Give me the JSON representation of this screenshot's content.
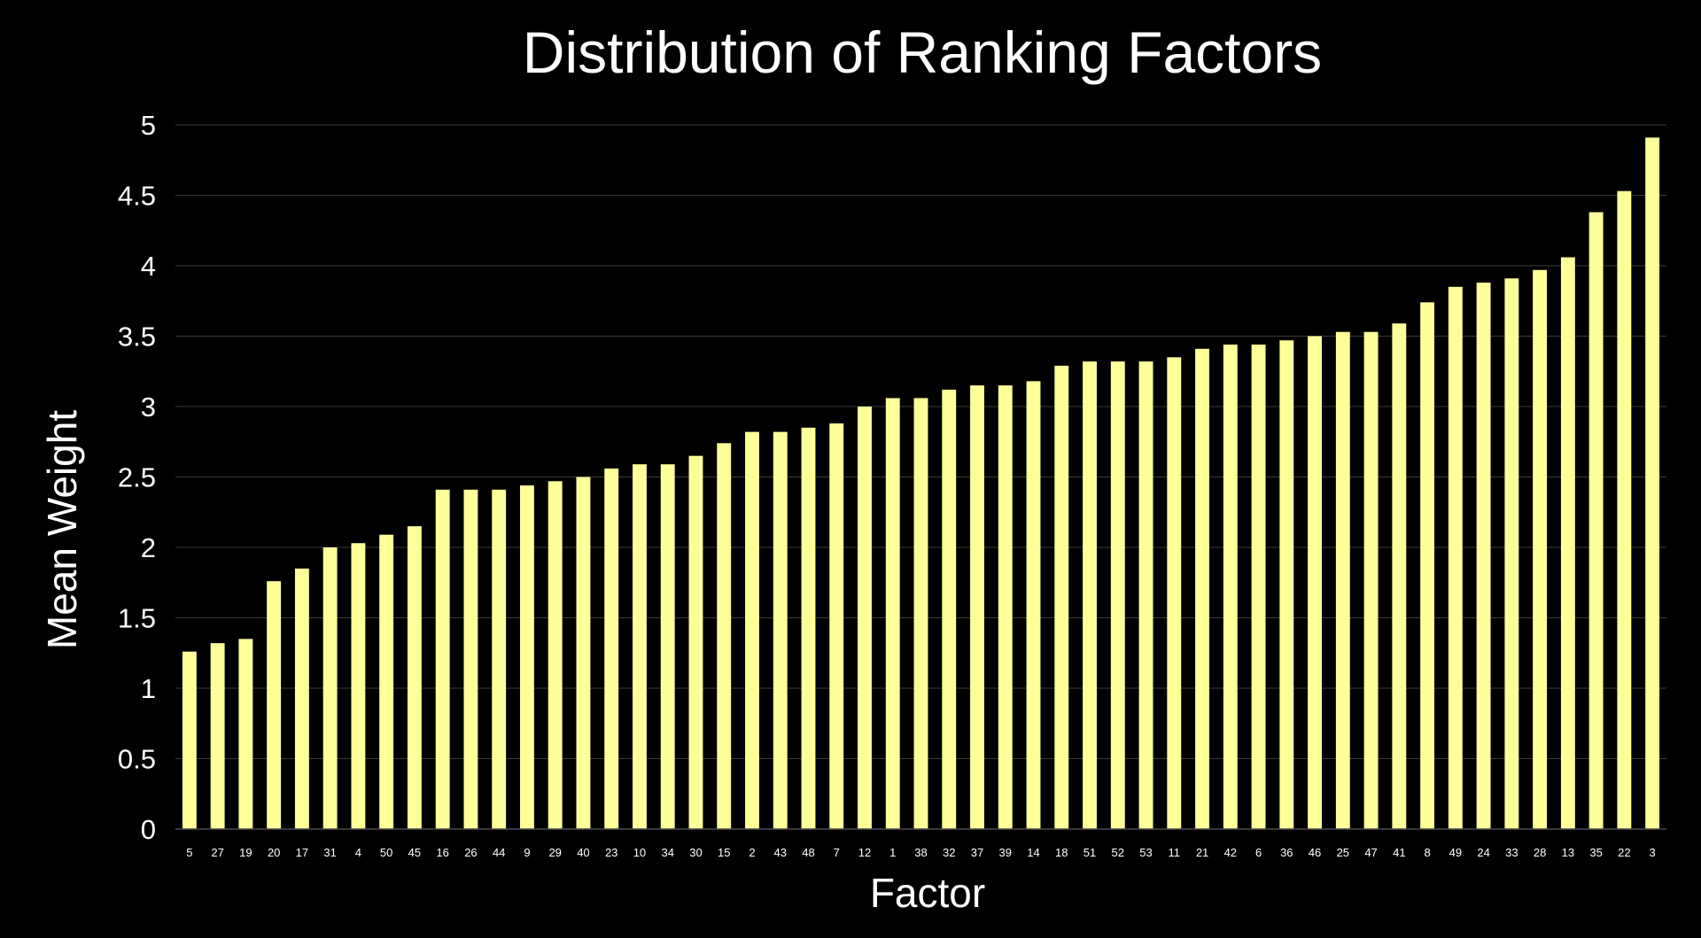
{
  "chart_data": {
    "type": "bar",
    "title": "Distribution of Ranking Factors",
    "xlabel": "Factor",
    "ylabel": "Mean Weight",
    "ylim": [
      0,
      5
    ],
    "yticks": [
      "0",
      "0.5",
      "1",
      "1.5",
      "2",
      "2.5",
      "3",
      "3.5",
      "4",
      "4.5",
      "5"
    ],
    "grid": true,
    "legend": "none",
    "bar_color": "#ffff99",
    "background_color": "#000000",
    "categories": [
      "5",
      "27",
      "19",
      "20",
      "17",
      "31",
      "4",
      "50",
      "45",
      "16",
      "26",
      "44",
      "9",
      "29",
      "40",
      "23",
      "10",
      "34",
      "30",
      "15",
      "2",
      "43",
      "48",
      "7",
      "12",
      "1",
      "38",
      "32",
      "37",
      "39",
      "14",
      "18",
      "51",
      "52",
      "53",
      "11",
      "21",
      "42",
      "6",
      "36",
      "46",
      "25",
      "47",
      "41",
      "8",
      "49",
      "24",
      "33",
      "28",
      "13",
      "35",
      "22",
      "3"
    ],
    "values": [
      1.26,
      1.32,
      1.35,
      1.76,
      1.85,
      2.0,
      2.03,
      2.09,
      2.15,
      2.41,
      2.41,
      2.41,
      2.44,
      2.47,
      2.5,
      2.56,
      2.59,
      2.59,
      2.65,
      2.74,
      2.82,
      2.82,
      2.85,
      2.88,
      3.0,
      3.06,
      3.06,
      3.12,
      3.15,
      3.15,
      3.18,
      3.29,
      3.32,
      3.32,
      3.32,
      3.35,
      3.41,
      3.44,
      3.44,
      3.47,
      3.5,
      3.53,
      3.53,
      3.59,
      3.74,
      3.85,
      3.88,
      3.91,
      3.97,
      4.06,
      4.38,
      4.53,
      4.91
    ]
  }
}
